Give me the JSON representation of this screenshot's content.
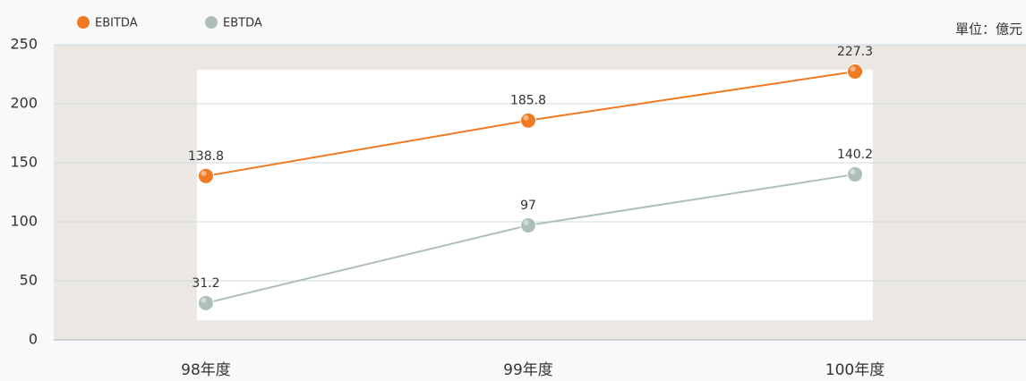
{
  "chart_data": {
    "type": "line",
    "unit_label": "單位：億元",
    "categories": [
      "98年度",
      "99年度",
      "100年度"
    ],
    "series": [
      {
        "name": "EBITDA",
        "color": "#f07a22",
        "values": [
          138.8,
          185.8,
          227.3
        ]
      },
      {
        "name": "EBTDA",
        "color": "#adbfb6",
        "values": [
          31.2,
          97,
          140.2
        ]
      }
    ],
    "ylim": [
      0,
      250
    ],
    "yticks": [
      0,
      50,
      100,
      150,
      200,
      250
    ],
    "grid": true
  }
}
